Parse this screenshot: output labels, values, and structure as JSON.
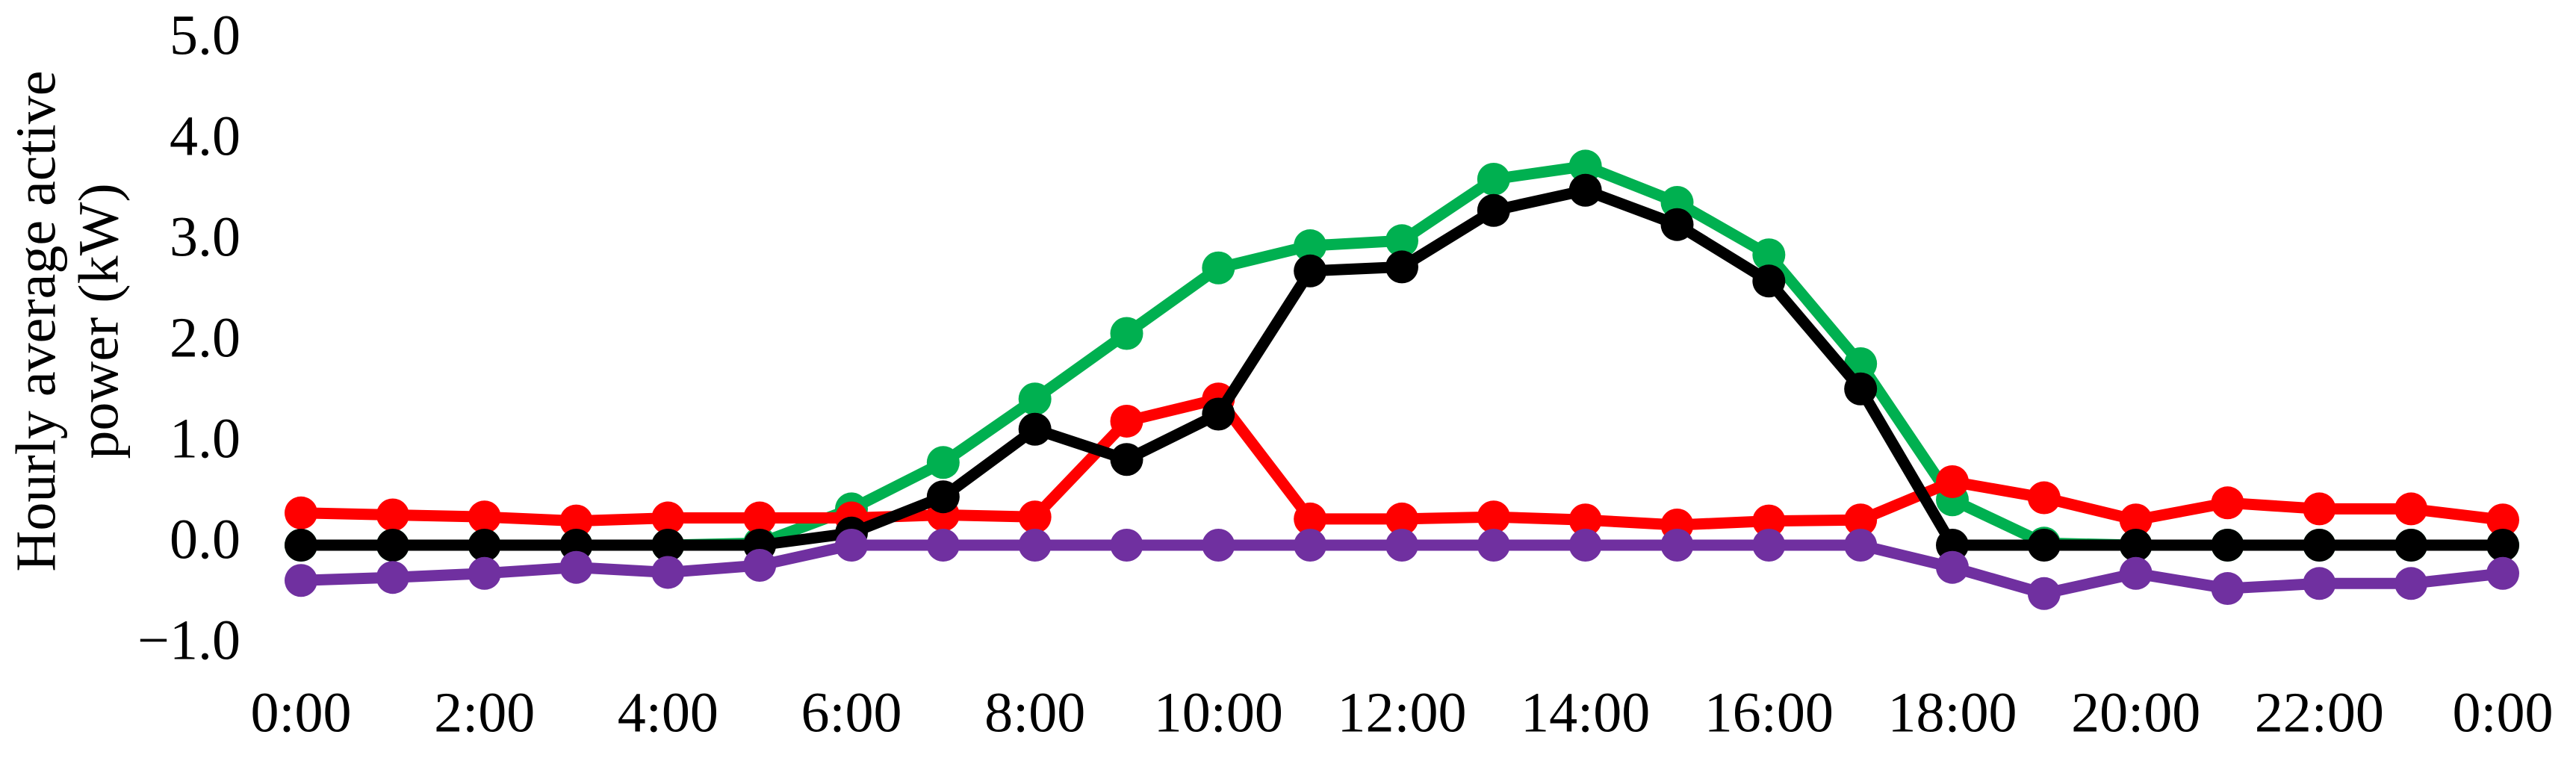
{
  "chart_data": {
    "type": "line",
    "ylabel": [
      "Hourly average active",
      "power (kW)"
    ],
    "categories": [
      "0:00",
      null,
      "2:00",
      null,
      "4:00",
      null,
      "6:00",
      null,
      "8:00",
      null,
      "10:00",
      null,
      "12:00",
      null,
      "14:00",
      null,
      "16:00",
      null,
      "18:00",
      null,
      "20:00",
      null,
      "22:00",
      null,
      "0:00"
    ],
    "ylim": [
      -1,
      5
    ],
    "yticks": [
      {
        "value": 5,
        "label": "5.0"
      },
      {
        "value": 4,
        "label": "4.0"
      },
      {
        "value": 3,
        "label": "3.0"
      },
      {
        "value": 2,
        "label": "2.0"
      },
      {
        "value": 1,
        "label": "1.0"
      },
      {
        "value": 0,
        "label": "0.0"
      },
      {
        "value": -1,
        "label": "−1.0"
      }
    ],
    "grid": false,
    "series": [
      {
        "color": "#00b050",
        "values": [
          0,
          0,
          0,
          0,
          0,
          0.02,
          0.36,
          0.82,
          1.45,
          2.1,
          2.75,
          2.97,
          3.02,
          3.63,
          3.76,
          3.4,
          2.88,
          1.8,
          0.45,
          0.02,
          0,
          0,
          0,
          0,
          0
        ]
      },
      {
        "color": "#ff0000",
        "values": [
          0.32,
          0.3,
          0.28,
          0.24,
          0.27,
          0.27,
          0.27,
          0.3,
          0.28,
          1.23,
          1.45,
          0.26,
          0.26,
          0.28,
          0.25,
          0.2,
          0.24,
          0.25,
          0.63,
          0.47,
          0.25,
          0.42,
          0.36,
          0.36,
          0.25
        ]
      },
      {
        "color": "#000000",
        "values": [
          0,
          0,
          0,
          0,
          0,
          0,
          0.12,
          0.48,
          1.15,
          0.85,
          1.3,
          2.72,
          2.76,
          3.32,
          3.52,
          3.18,
          2.62,
          1.55,
          0,
          0,
          0,
          0,
          0,
          0,
          0
        ]
      },
      {
        "color": "#7030a0",
        "values": [
          -0.35,
          -0.32,
          -0.28,
          -0.22,
          -0.27,
          -0.2,
          0,
          0,
          0,
          0,
          0,
          0,
          0,
          0,
          0,
          0,
          0,
          0,
          -0.22,
          -0.48,
          -0.28,
          -0.43,
          -0.38,
          -0.38,
          -0.28
        ]
      }
    ]
  }
}
